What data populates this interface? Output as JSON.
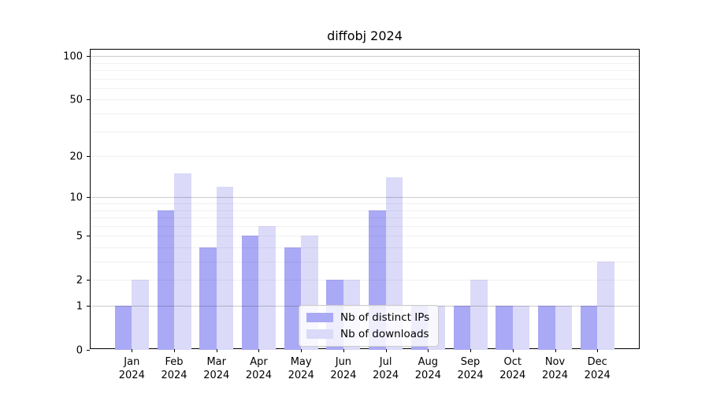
{
  "chart_data": {
    "type": "bar",
    "title": "diffobj 2024",
    "categories": [
      "Jan 2024",
      "Feb 2024",
      "Mar 2024",
      "Apr 2024",
      "May 2024",
      "Jun 2024",
      "Jul 2024",
      "Aug 2024",
      "Sep 2024",
      "Oct 2024",
      "Nov 2024",
      "Dec 2024"
    ],
    "category_line1": [
      "Jan",
      "Feb",
      "Mar",
      "Apr",
      "May",
      "Jun",
      "Jul",
      "Aug",
      "Sep",
      "Oct",
      "Nov",
      "Dec"
    ],
    "category_line2": "2024",
    "series": [
      {
        "name": "Nb of distinct IPs",
        "color": "#aaa9f5",
        "values": [
          1,
          8,
          4,
          5,
          4,
          2,
          8,
          1,
          1,
          1,
          1,
          1
        ]
      },
      {
        "name": "Nb of downloads",
        "color": "#dbdaf8",
        "values": [
          2,
          15,
          12,
          6,
          5,
          2,
          14,
          1,
          2,
          1,
          1,
          3
        ]
      }
    ],
    "xlabel": "",
    "ylabel": "",
    "y_scale": "log1p",
    "ylim": [
      0,
      111
    ],
    "y_tick_values": [
      100,
      50,
      20,
      10,
      5,
      2,
      1,
      0
    ],
    "minor_gridline_values": [
      2,
      3,
      4,
      5,
      6,
      7,
      8,
      9,
      20,
      30,
      40,
      50,
      60,
      70,
      80,
      90
    ],
    "major_gridline_values": [
      1,
      10,
      100
    ],
    "grid": "on, drawn above bars",
    "legend_position": "lower center inside plot",
    "colors": {
      "distinct_ips": "#aaa9f5",
      "downloads": "#dbdaf8",
      "spine": "#000000",
      "background": "#ffffff"
    }
  }
}
